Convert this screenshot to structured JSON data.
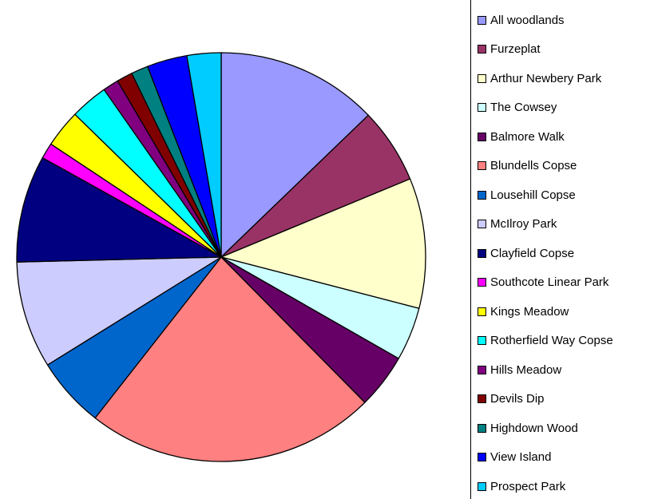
{
  "chart_data": {
    "type": "pie",
    "title": "",
    "legend_position": "right",
    "slices": [
      {
        "label": "All woodlands",
        "value": 13.3,
        "color": "#9999ff"
      },
      {
        "label": "Furzeplat",
        "value": 6.2,
        "color": "#993366"
      },
      {
        "label": "Arthur Newbery Park",
        "value": 10.7,
        "color": "#ffffcc"
      },
      {
        "label": "The Cowsey",
        "value": 4.4,
        "color": "#ccffff"
      },
      {
        "label": "Balmore Walk",
        "value": 4.5,
        "color": "#660066"
      },
      {
        "label": "Blundells Copse",
        "value": 23.9,
        "color": "#ff8080"
      },
      {
        "label": "Lousehill Copse",
        "value": 5.8,
        "color": "#0066cc"
      },
      {
        "label": "McIlroy Park",
        "value": 8.8,
        "color": "#ccccff"
      },
      {
        "label": "Clayfield Copse",
        "value": 8.8,
        "color": "#000080"
      },
      {
        "label": "Southcote Linear Park",
        "value": 1.3,
        "color": "#ff00ff"
      },
      {
        "label": "Kings Meadow",
        "value": 3.1,
        "color": "#ffff00"
      },
      {
        "label": "Rotherfield Way Copse",
        "value": 3.1,
        "color": "#00ffff"
      },
      {
        "label": "Hills Meadow",
        "value": 1.3,
        "color": "#800080"
      },
      {
        "label": "Devils Dip",
        "value": 1.3,
        "color": "#800000"
      },
      {
        "label": "Highdown Wood",
        "value": 1.4,
        "color": "#008080"
      },
      {
        "label": "View Island",
        "value": 3.3,
        "color": "#0000ff"
      },
      {
        "label": "Prospect Park",
        "value": 2.8,
        "color": "#00ccff"
      }
    ]
  }
}
